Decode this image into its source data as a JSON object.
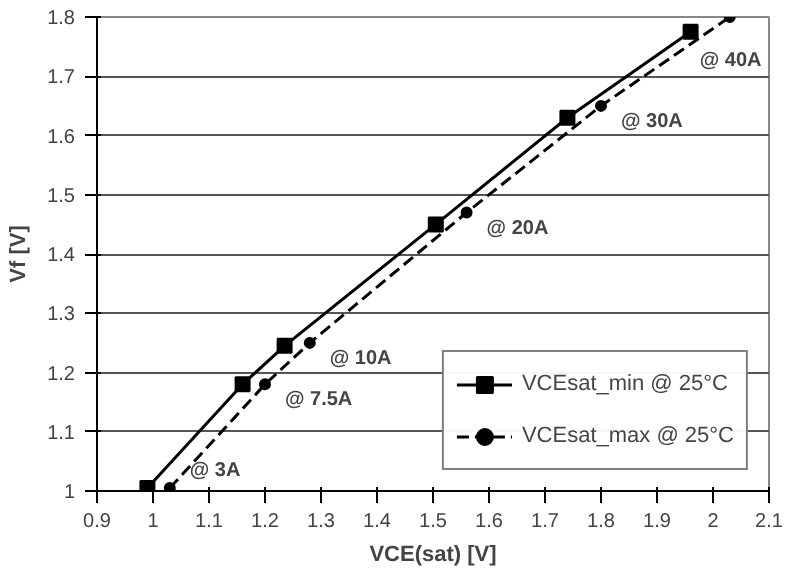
{
  "chart_data": {
    "type": "line",
    "xlabel": "VCE(sat) [V]",
    "ylabel": "Vf [V]",
    "xlim": [
      0.9,
      2.1
    ],
    "xticks": [
      0.9,
      1,
      1.1,
      1.2,
      1.3,
      1.4,
      1.5,
      1.6,
      1.7,
      1.8,
      1.9,
      2,
      2.1
    ],
    "ylim": [
      1,
      1.8
    ],
    "yticks": [
      1,
      1.1,
      1.2,
      1.3,
      1.4,
      1.5,
      1.6,
      1.7,
      1.8
    ],
    "grid": "y",
    "legend": "bottom right",
    "series": [
      {
        "name": "VCEsat_min @ 25°C",
        "color": "#000000",
        "marker": "square",
        "line_style": "solid",
        "x": [
          0.99,
          1.16,
          1.235,
          1.505,
          1.74,
          1.96
        ],
        "values": [
          1.005,
          1.18,
          1.245,
          1.45,
          1.63,
          1.775
        ]
      },
      {
        "name": "VCEsat_max @ 25°C",
        "color": "#000000",
        "marker": "circle",
        "line_style": "dashed",
        "x": [
          1.03,
          1.2,
          1.28,
          1.56,
          1.8,
          2.03
        ],
        "values": [
          1.005,
          1.18,
          1.25,
          1.47,
          1.65,
          1.8
        ]
      }
    ],
    "annotations": [
      {
        "text": "@ 3A",
        "x": 1.03,
        "y": 1.005
      },
      {
        "text": "@ 7.5A",
        "x": 1.2,
        "y": 1.18
      },
      {
        "text": "@ 10A",
        "x": 1.28,
        "y": 1.25
      },
      {
        "text": "@ 20A",
        "x": 1.56,
        "y": 1.47
      },
      {
        "text": "@ 30A",
        "x": 1.8,
        "y": 1.65
      },
      {
        "text": "@ 40A",
        "x": 2.03,
        "y": 1.8
      }
    ]
  }
}
